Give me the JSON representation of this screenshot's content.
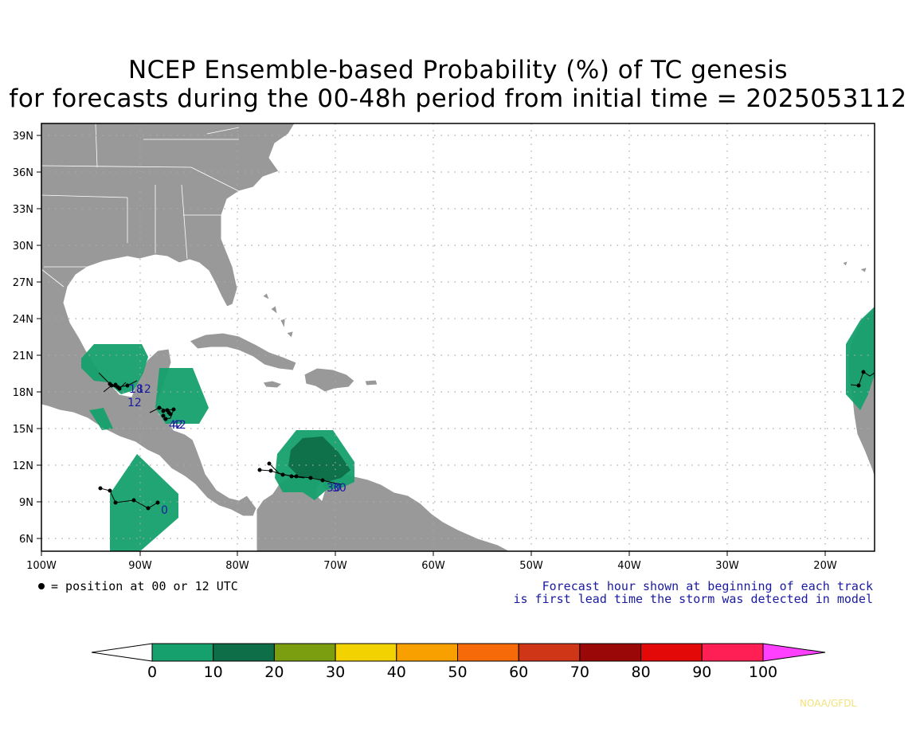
{
  "title": {
    "line1": "NCEP Ensemble-based Probability (%) of TC genesis",
    "line2": "for forecasts during the 00-48h period from initial time = 2025053112"
  },
  "map": {
    "lat_labels": [
      "39N",
      "36N",
      "33N",
      "30N",
      "27N",
      "24N",
      "21N",
      "18N",
      "15N",
      "12N",
      "9N",
      "6N"
    ],
    "lon_labels": [
      "100W",
      "90W",
      "80W",
      "70W",
      "60W",
      "50W",
      "40W",
      "30W",
      "20W"
    ],
    "land_color": "#999999",
    "ocean_color": "#ffffff",
    "track_hour_labels": [
      {
        "text": "18"
      },
      {
        "text": "12"
      },
      {
        "text": "12"
      },
      {
        "text": "42"
      },
      {
        "text": "42"
      },
      {
        "text": "30"
      },
      {
        "text": "30"
      },
      {
        "text": "0"
      }
    ]
  },
  "legend": {
    "marker_note": "= position at 00 or 12 UTC",
    "forecast_note_line1": "Forecast hour shown at beginning of each track",
    "forecast_note_line2": "is first lead time the storm was detected in model"
  },
  "colorbar": {
    "ticks": [
      "0",
      "10",
      "20",
      "30",
      "40",
      "50",
      "60",
      "70",
      "80",
      "90",
      "100"
    ],
    "colors": [
      "#15a06e",
      "#0e6e48",
      "#7a9e10",
      "#f2d200",
      "#f7a000",
      "#f76a0a",
      "#cf3517",
      "#9b0808",
      "#e40909",
      "#ff1f55"
    ],
    "under_color": "#ffffff",
    "over_color": "#ff40ff"
  },
  "credit": "NOAA/GFDL"
}
